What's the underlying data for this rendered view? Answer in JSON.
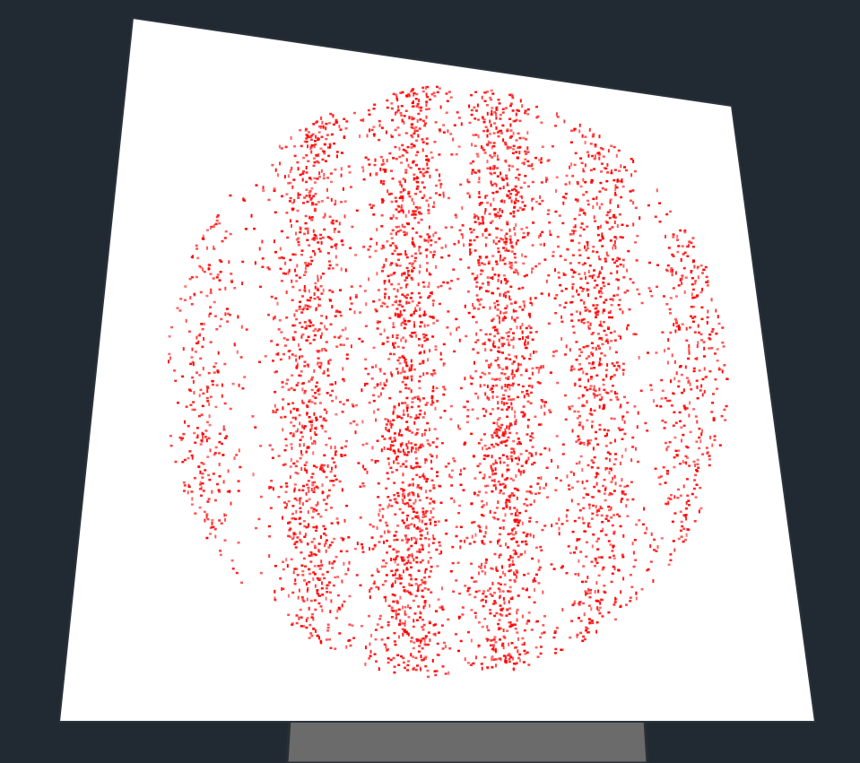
{
  "scene": {
    "background_color": "#212932",
    "panel_color": "#ffffff",
    "panel_border_color": "#2b333c",
    "stand_color": "#6b6b6b",
    "stand_border_color": "#2a2f35",
    "point_color": "#ff0000"
  },
  "point_cloud": {
    "column_count": 6,
    "column_density": [
      0.55,
      0.85,
      1.0,
      1.0,
      0.8,
      0.55
    ]
  }
}
